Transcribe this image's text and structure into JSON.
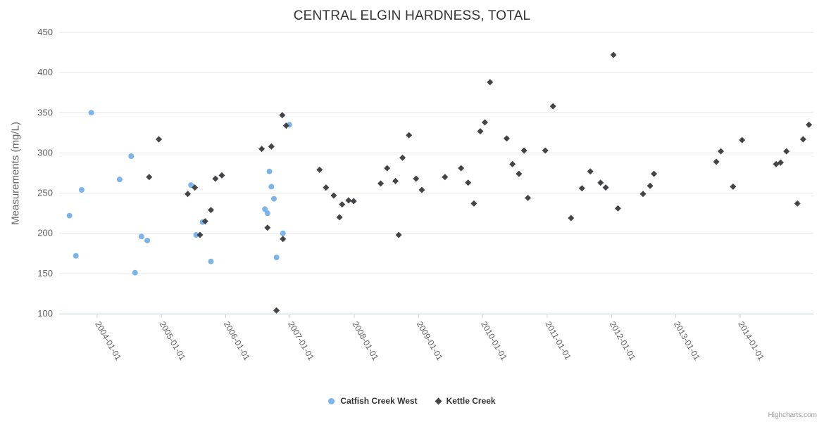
{
  "title": "CENTRAL ELGIN HARDNESS, TOTAL",
  "credits": "Highcharts.com",
  "chart_data": {
    "type": "scatter",
    "title": "CENTRAL ELGIN HARDNESS, TOTAL",
    "xlabel": "",
    "ylabel": "Measurements (mg/L)",
    "x_unit": "date (decimal year, ticks at Jan 1)",
    "xlim": [
      2003.41,
      2015.14
    ],
    "ylim": [
      100,
      450
    ],
    "y_ticks": [
      100,
      150,
      200,
      250,
      300,
      350,
      400,
      450
    ],
    "x_ticks": [
      {
        "value": 2004,
        "label": "2004-01-01"
      },
      {
        "value": 2005,
        "label": "2005-01-01"
      },
      {
        "value": 2006,
        "label": "2006-01-01"
      },
      {
        "value": 2007,
        "label": "2007-01-01"
      },
      {
        "value": 2008,
        "label": "2008-01-01"
      },
      {
        "value": 2009,
        "label": "2009-01-01"
      },
      {
        "value": 2010,
        "label": "2010-01-01"
      },
      {
        "value": 2011,
        "label": "2011-01-01"
      },
      {
        "value": 2012,
        "label": "2012-01-01"
      },
      {
        "value": 2013,
        "label": "2013-01-01"
      },
      {
        "value": 2014,
        "label": "2014-01-01"
      }
    ],
    "grid": "horizontal",
    "legend_position": "bottom-center",
    "colors": {
      "grid": "#e6e6e6",
      "axis_line": "#ccd6eb",
      "tick_label": "#606060",
      "title": "#333333"
    },
    "series": [
      {
        "name": "Catfish Creek West",
        "marker": "circle",
        "color": "#7cb5ec",
        "points": [
          [
            2003.57,
            222
          ],
          [
            2003.67,
            172
          ],
          [
            2003.76,
            254
          ],
          [
            2003.91,
            350
          ],
          [
            2004.35,
            267
          ],
          [
            2004.53,
            296
          ],
          [
            2004.59,
            151
          ],
          [
            2004.69,
            196
          ],
          [
            2004.78,
            191
          ],
          [
            2005.46,
            260
          ],
          [
            2005.54,
            198
          ],
          [
            2005.64,
            214
          ],
          [
            2005.77,
            165
          ],
          [
            2006.61,
            230
          ],
          [
            2006.65,
            225
          ],
          [
            2006.68,
            277
          ],
          [
            2006.71,
            258
          ],
          [
            2006.75,
            243
          ],
          [
            2006.79,
            170
          ],
          [
            2006.89,
            200
          ],
          [
            2006.99,
            335
          ]
        ]
      },
      {
        "name": "Kettle Creek",
        "marker": "diamond",
        "color": "#434348",
        "points": [
          [
            2004.81,
            270
          ],
          [
            2004.96,
            317
          ],
          [
            2005.41,
            249
          ],
          [
            2005.52,
            257
          ],
          [
            2005.6,
            198
          ],
          [
            2005.68,
            215
          ],
          [
            2005.77,
            229
          ],
          [
            2005.84,
            268
          ],
          [
            2005.94,
            272
          ],
          [
            2006.56,
            305
          ],
          [
            2006.65,
            207
          ],
          [
            2006.71,
            308
          ],
          [
            2006.79,
            104
          ],
          [
            2006.88,
            347
          ],
          [
            2006.89,
            193
          ],
          [
            2006.94,
            334
          ],
          [
            2007.46,
            279
          ],
          [
            2007.56,
            257
          ],
          [
            2007.68,
            247
          ],
          [
            2007.77,
            220
          ],
          [
            2007.81,
            236
          ],
          [
            2007.91,
            241
          ],
          [
            2007.99,
            240
          ],
          [
            2008.41,
            262
          ],
          [
            2008.51,
            281
          ],
          [
            2008.64,
            265
          ],
          [
            2008.69,
            198
          ],
          [
            2008.75,
            294
          ],
          [
            2008.85,
            322
          ],
          [
            2008.96,
            268
          ],
          [
            2009.05,
            254
          ],
          [
            2009.41,
            270
          ],
          [
            2009.66,
            281
          ],
          [
            2009.77,
            263
          ],
          [
            2009.86,
            237
          ],
          [
            2009.96,
            327
          ],
          [
            2010.03,
            338
          ],
          [
            2010.11,
            388
          ],
          [
            2010.37,
            318
          ],
          [
            2010.46,
            286
          ],
          [
            2010.56,
            274
          ],
          [
            2010.64,
            303
          ],
          [
            2010.7,
            244
          ],
          [
            2010.97,
            303
          ],
          [
            2011.09,
            358
          ],
          [
            2011.37,
            219
          ],
          [
            2011.54,
            256
          ],
          [
            2011.67,
            277
          ],
          [
            2011.83,
            263
          ],
          [
            2011.91,
            257
          ],
          [
            2012.03,
            422
          ],
          [
            2012.1,
            231
          ],
          [
            2012.49,
            249
          ],
          [
            2012.6,
            259
          ],
          [
            2012.66,
            274
          ],
          [
            2013.63,
            289
          ],
          [
            2013.7,
            302
          ],
          [
            2013.89,
            258
          ],
          [
            2014.03,
            316
          ],
          [
            2014.56,
            286
          ],
          [
            2014.63,
            288
          ],
          [
            2014.72,
            302
          ],
          [
            2014.89,
            237
          ],
          [
            2014.98,
            317
          ],
          [
            2015.07,
            335
          ]
        ]
      }
    ]
  }
}
